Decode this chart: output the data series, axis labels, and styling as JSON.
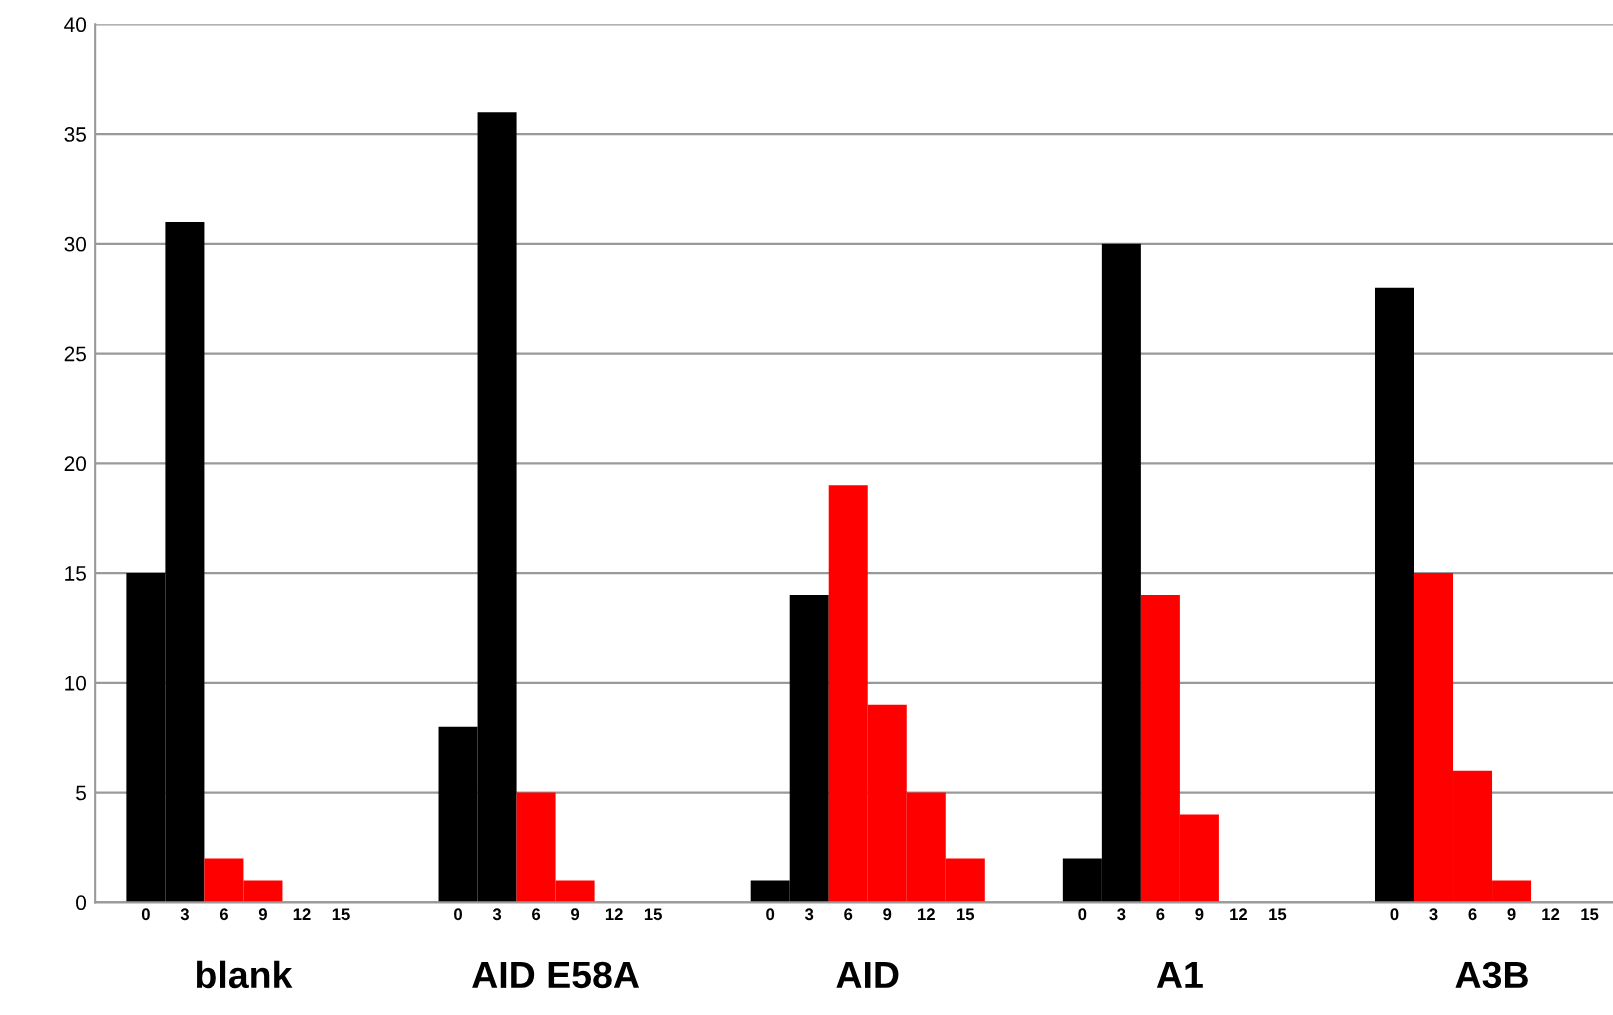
{
  "chart_data": {
    "type": "bar",
    "categories": [
      "0",
      "3",
      "6",
      "9",
      "12",
      "15",
      null,
      null,
      "0",
      "3",
      "6",
      "9",
      "12",
      "15",
      null,
      null,
      "0",
      "3",
      "6",
      "9",
      "12",
      "15",
      null,
      null,
      "0",
      "3",
      "6",
      "9",
      "12",
      "15",
      null,
      null,
      "0",
      "3",
      "6",
      "9",
      "12",
      "15"
    ],
    "values": [
      15,
      31,
      2,
      1,
      0,
      0,
      null,
      null,
      8,
      36,
      5,
      1,
      0,
      0,
      null,
      null,
      1,
      14,
      19,
      9,
      5,
      2,
      null,
      null,
      2,
      30,
      14,
      4,
      0,
      0,
      null,
      null,
      28,
      15,
      6,
      1,
      0,
      0
    ],
    "colors": [
      "#000000",
      "#000000",
      "#ff0000",
      "#ff0000",
      "#ff0000",
      "#ff0000",
      null,
      null,
      "#000000",
      "#000000",
      "#ff0000",
      "#ff0000",
      "#ff0000",
      "#ff0000",
      null,
      null,
      "#000000",
      "#000000",
      "#ff0000",
      "#ff0000",
      "#ff0000",
      "#ff0000",
      null,
      null,
      "#000000",
      "#000000",
      "#ff0000",
      "#ff0000",
      "#ff0000",
      "#ff0000",
      null,
      null,
      "#000000",
      "#ff0000",
      "#ff0000",
      "#ff0000",
      "#ff0000",
      "#ff0000"
    ],
    "annotations": [
      "blank",
      "AID E58A",
      "AID",
      "A1",
      "A3B"
    ],
    "ylim": [
      0,
      40
    ],
    "yticks": [
      0,
      5,
      10,
      15,
      20,
      25,
      30,
      35,
      40
    ],
    "grid": "y",
    "legend": false
  }
}
